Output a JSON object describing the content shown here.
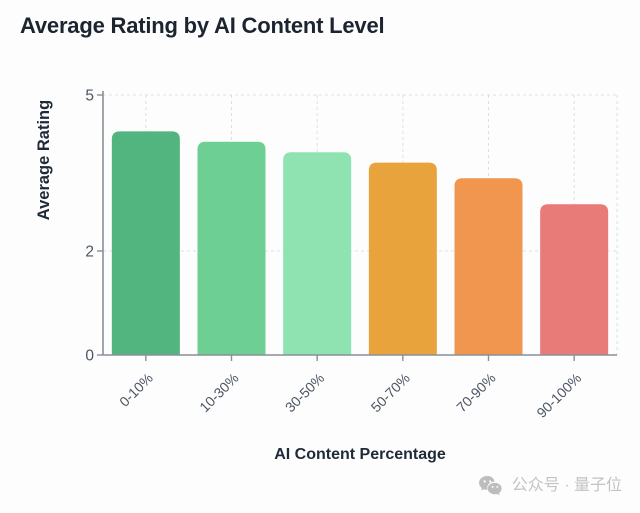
{
  "header": {
    "title": "Average Rating by AI Content Level"
  },
  "chart_data": {
    "type": "bar",
    "title": "Average Rating by AI Content Level",
    "categories": [
      "0-10%",
      "10-30%",
      "30-50%",
      "50-70%",
      "70-90%",
      "90-100%"
    ],
    "values": [
      4.3,
      4.1,
      3.9,
      3.7,
      3.4,
      2.9
    ],
    "bar_colors": [
      "#52b47e",
      "#6ecf95",
      "#8fe3b1",
      "#e8a33c",
      "#f0964e",
      "#e87a78"
    ],
    "xlabel": "AI Content Percentage",
    "ylabel": "Average Rating",
    "ylim": [
      0,
      5
    ],
    "yticks": [
      0,
      2,
      5
    ],
    "grid": "dashed, vertical lines at category centers and right edge, horizontal at yticks 2 and 5",
    "legend": "none"
  },
  "watermark": {
    "icon": "wechat-icon",
    "text": "公众号 · 量子位"
  },
  "colors": {
    "background": "#fdfdfd",
    "title_text": "#1c2430",
    "axis_line": "#8a8f98",
    "tick_label": "#4b5563",
    "gridline": "#dcdfe3",
    "axis_title_text": "#1f2937",
    "watermark_gray": "#c3c3c3"
  }
}
